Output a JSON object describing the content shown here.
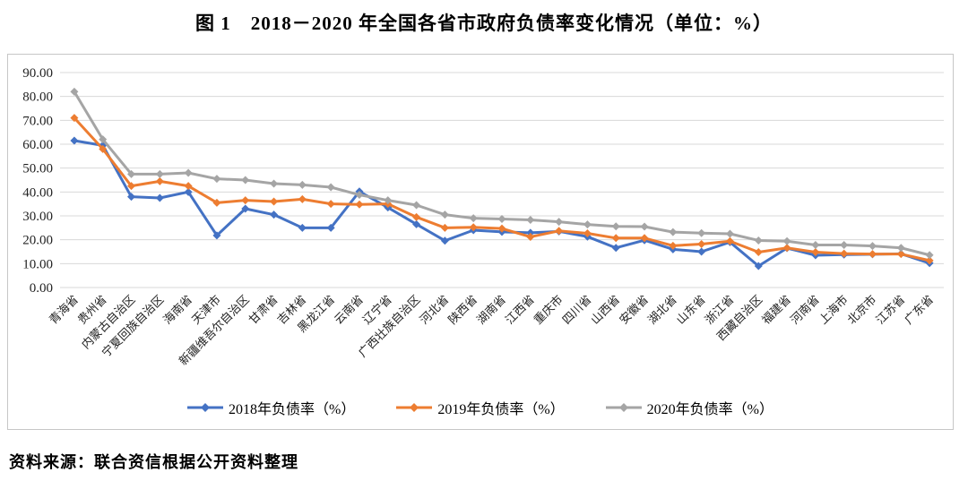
{
  "page": {
    "title": "图 1　2018－2020 年全国各省市政府负债率变化情况（单位：%）",
    "source": "资料来源：联合资信根据公开资料整理"
  },
  "chart_data": {
    "type": "line",
    "title": "图 1　2018－2020 年全国各省市政府负债率变化情况（单位：%）",
    "unit": "%",
    "marker": "diamond",
    "grid": true,
    "legend_position": "bottom",
    "ylim": [
      0,
      90
    ],
    "ytick_step": 10,
    "ytick_labels": [
      "0.00",
      "10.00",
      "20.00",
      "30.00",
      "40.00",
      "50.00",
      "60.00",
      "70.00",
      "80.00",
      "90.00"
    ],
    "categories": [
      "青海省",
      "贵州省",
      "内蒙古自治区",
      "宁夏回族自治区",
      "海南省",
      "天津市",
      "新疆维吾尔自治区",
      "甘肃省",
      "吉林省",
      "黑龙江省",
      "云南省",
      "辽宁省",
      "广西壮族自治区",
      "河北省",
      "陕西省",
      "湖南省",
      "江西省",
      "重庆市",
      "四川省",
      "山西省",
      "安徽省",
      "湖北省",
      "山东省",
      "浙江省",
      "西藏自治区",
      "福建省",
      "河南省",
      "上海市",
      "北京市",
      "江苏省",
      "广东省"
    ],
    "series": [
      {
        "name": "2018年负债率（%）",
        "color": "#4472C4",
        "values": [
          61.5,
          59.5,
          38.0,
          37.5,
          40.0,
          21.8,
          33.0,
          30.5,
          25.0,
          25.0,
          40.2,
          33.5,
          26.5,
          19.6,
          24.0,
          23.3,
          22.9,
          23.5,
          21.3,
          16.6,
          19.8,
          16.0,
          15.0,
          19.0,
          9.0,
          16.5,
          13.5,
          13.8,
          13.9,
          14.1,
          10.2
        ]
      },
      {
        "name": "2019年负债率（%）",
        "color": "#ED7D31",
        "values": [
          71.0,
          58.0,
          42.5,
          44.5,
          42.5,
          35.5,
          36.5,
          36.0,
          37.0,
          35.0,
          34.8,
          35.0,
          29.5,
          25.0,
          25.2,
          24.7,
          21.2,
          23.7,
          22.7,
          20.7,
          20.7,
          17.5,
          18.2,
          19.4,
          14.8,
          16.6,
          14.8,
          14.2,
          14.0,
          14.0,
          11.3
        ]
      },
      {
        "name": "2020年负债率（%）",
        "color": "#A5A5A5",
        "values": [
          82.0,
          62.0,
          47.5,
          47.5,
          48.0,
          45.5,
          45.0,
          43.5,
          43.0,
          42.0,
          38.8,
          36.5,
          34.5,
          30.5,
          29.0,
          28.7,
          28.3,
          27.5,
          26.4,
          25.6,
          25.5,
          23.2,
          22.8,
          22.5,
          19.7,
          19.4,
          17.8,
          17.8,
          17.4,
          16.6,
          13.6
        ]
      }
    ],
    "colors": {
      "gridline": "#d8d8d8",
      "chart_border": "#c6c6c6",
      "text": "#222222"
    }
  }
}
